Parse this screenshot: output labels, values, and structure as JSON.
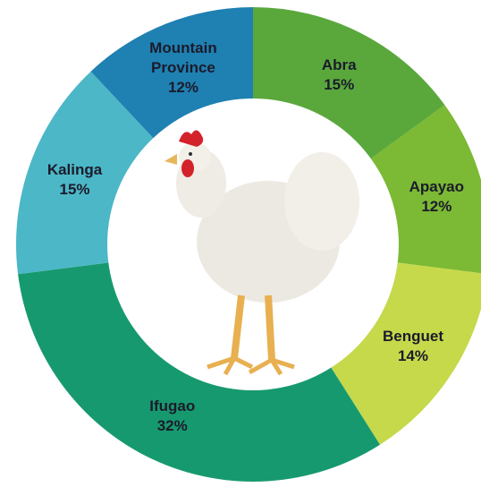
{
  "chart_data": {
    "type": "donut",
    "categories": [
      "Abra",
      "Apayao",
      "Benguet",
      "Ifugao",
      "Kalinga",
      "Mountain Province"
    ],
    "values": [
      15,
      12,
      14,
      32,
      15,
      12
    ],
    "value_labels": [
      "15%",
      "12%",
      "14%",
      "32%",
      "15%",
      "12%"
    ],
    "colors": [
      "#5aa83c",
      "#7cb934",
      "#c5d94a",
      "#17996f",
      "#4cb7c6",
      "#1f80b2"
    ]
  }
}
